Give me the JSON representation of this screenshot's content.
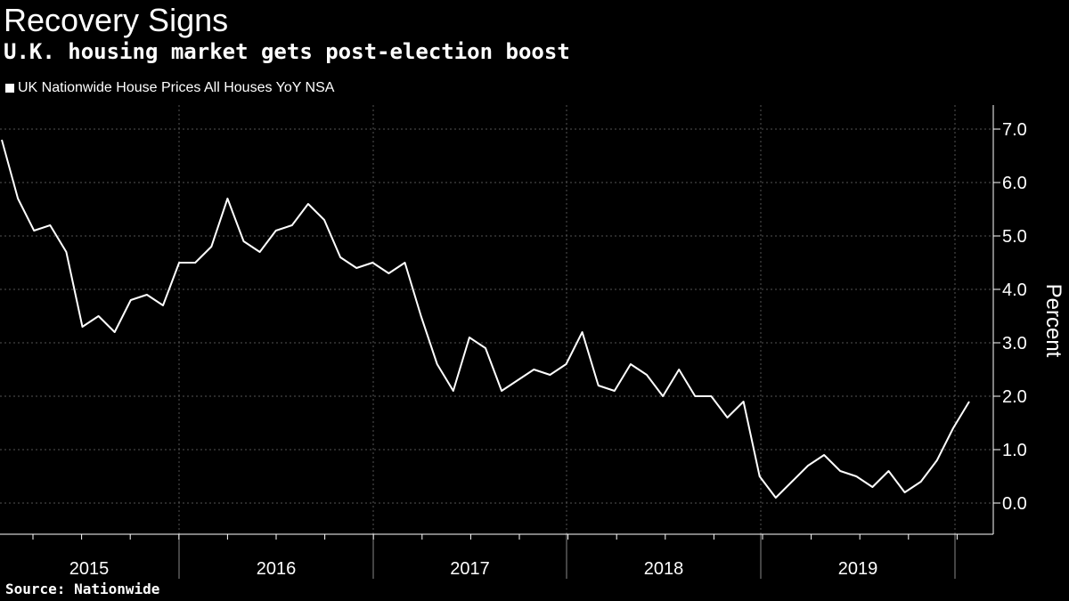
{
  "header": {
    "title": "Recovery Signs",
    "subtitle": "U.K. housing market gets post-election boost"
  },
  "legend": {
    "label": "UK Nationwide House Prices All Houses YoY NSA"
  },
  "footer": {
    "source": "Source: Nationwide"
  },
  "colors": {
    "background": "#000000",
    "line": "#ffffff",
    "grid": "#555555"
  },
  "chart_data": {
    "type": "line",
    "title": "Recovery Signs",
    "subtitle": "U.K. housing market gets post-election boost",
    "xlabel": "",
    "ylabel": "Percent",
    "ylim": [
      -0.6,
      7.4
    ],
    "yticks": [
      0.0,
      1.0,
      2.0,
      3.0,
      4.0,
      5.0,
      6.0,
      7.0
    ],
    "ytick_labels": [
      "0.0",
      "1.0",
      "2.0",
      "3.0",
      "4.0",
      "5.0",
      "6.0",
      "7.0"
    ],
    "x_start_month": "2015-01",
    "years": [
      "2015",
      "2016",
      "2017",
      "2018",
      "2019"
    ],
    "legend_position": "top-left",
    "grid": true,
    "series": [
      {
        "name": "UK Nationwide House Prices All Houses YoY NSA",
        "values": [
          6.8,
          5.7,
          5.1,
          5.2,
          4.7,
          3.3,
          3.5,
          3.2,
          3.8,
          3.9,
          3.7,
          4.5,
          4.5,
          4.8,
          5.7,
          4.9,
          4.7,
          5.1,
          5.2,
          5.6,
          5.3,
          4.6,
          4.4,
          4.5,
          4.3,
          4.5,
          3.5,
          2.6,
          2.1,
          3.1,
          2.9,
          2.1,
          2.3,
          2.5,
          2.4,
          2.6,
          3.2,
          2.2,
          2.1,
          2.6,
          2.4,
          2.0,
          2.5,
          2.0,
          2.0,
          1.6,
          1.9,
          0.5,
          0.1,
          0.4,
          0.7,
          0.9,
          0.6,
          0.5,
          0.3,
          0.6,
          0.2,
          0.4,
          0.8,
          1.4,
          1.9
        ]
      }
    ]
  }
}
